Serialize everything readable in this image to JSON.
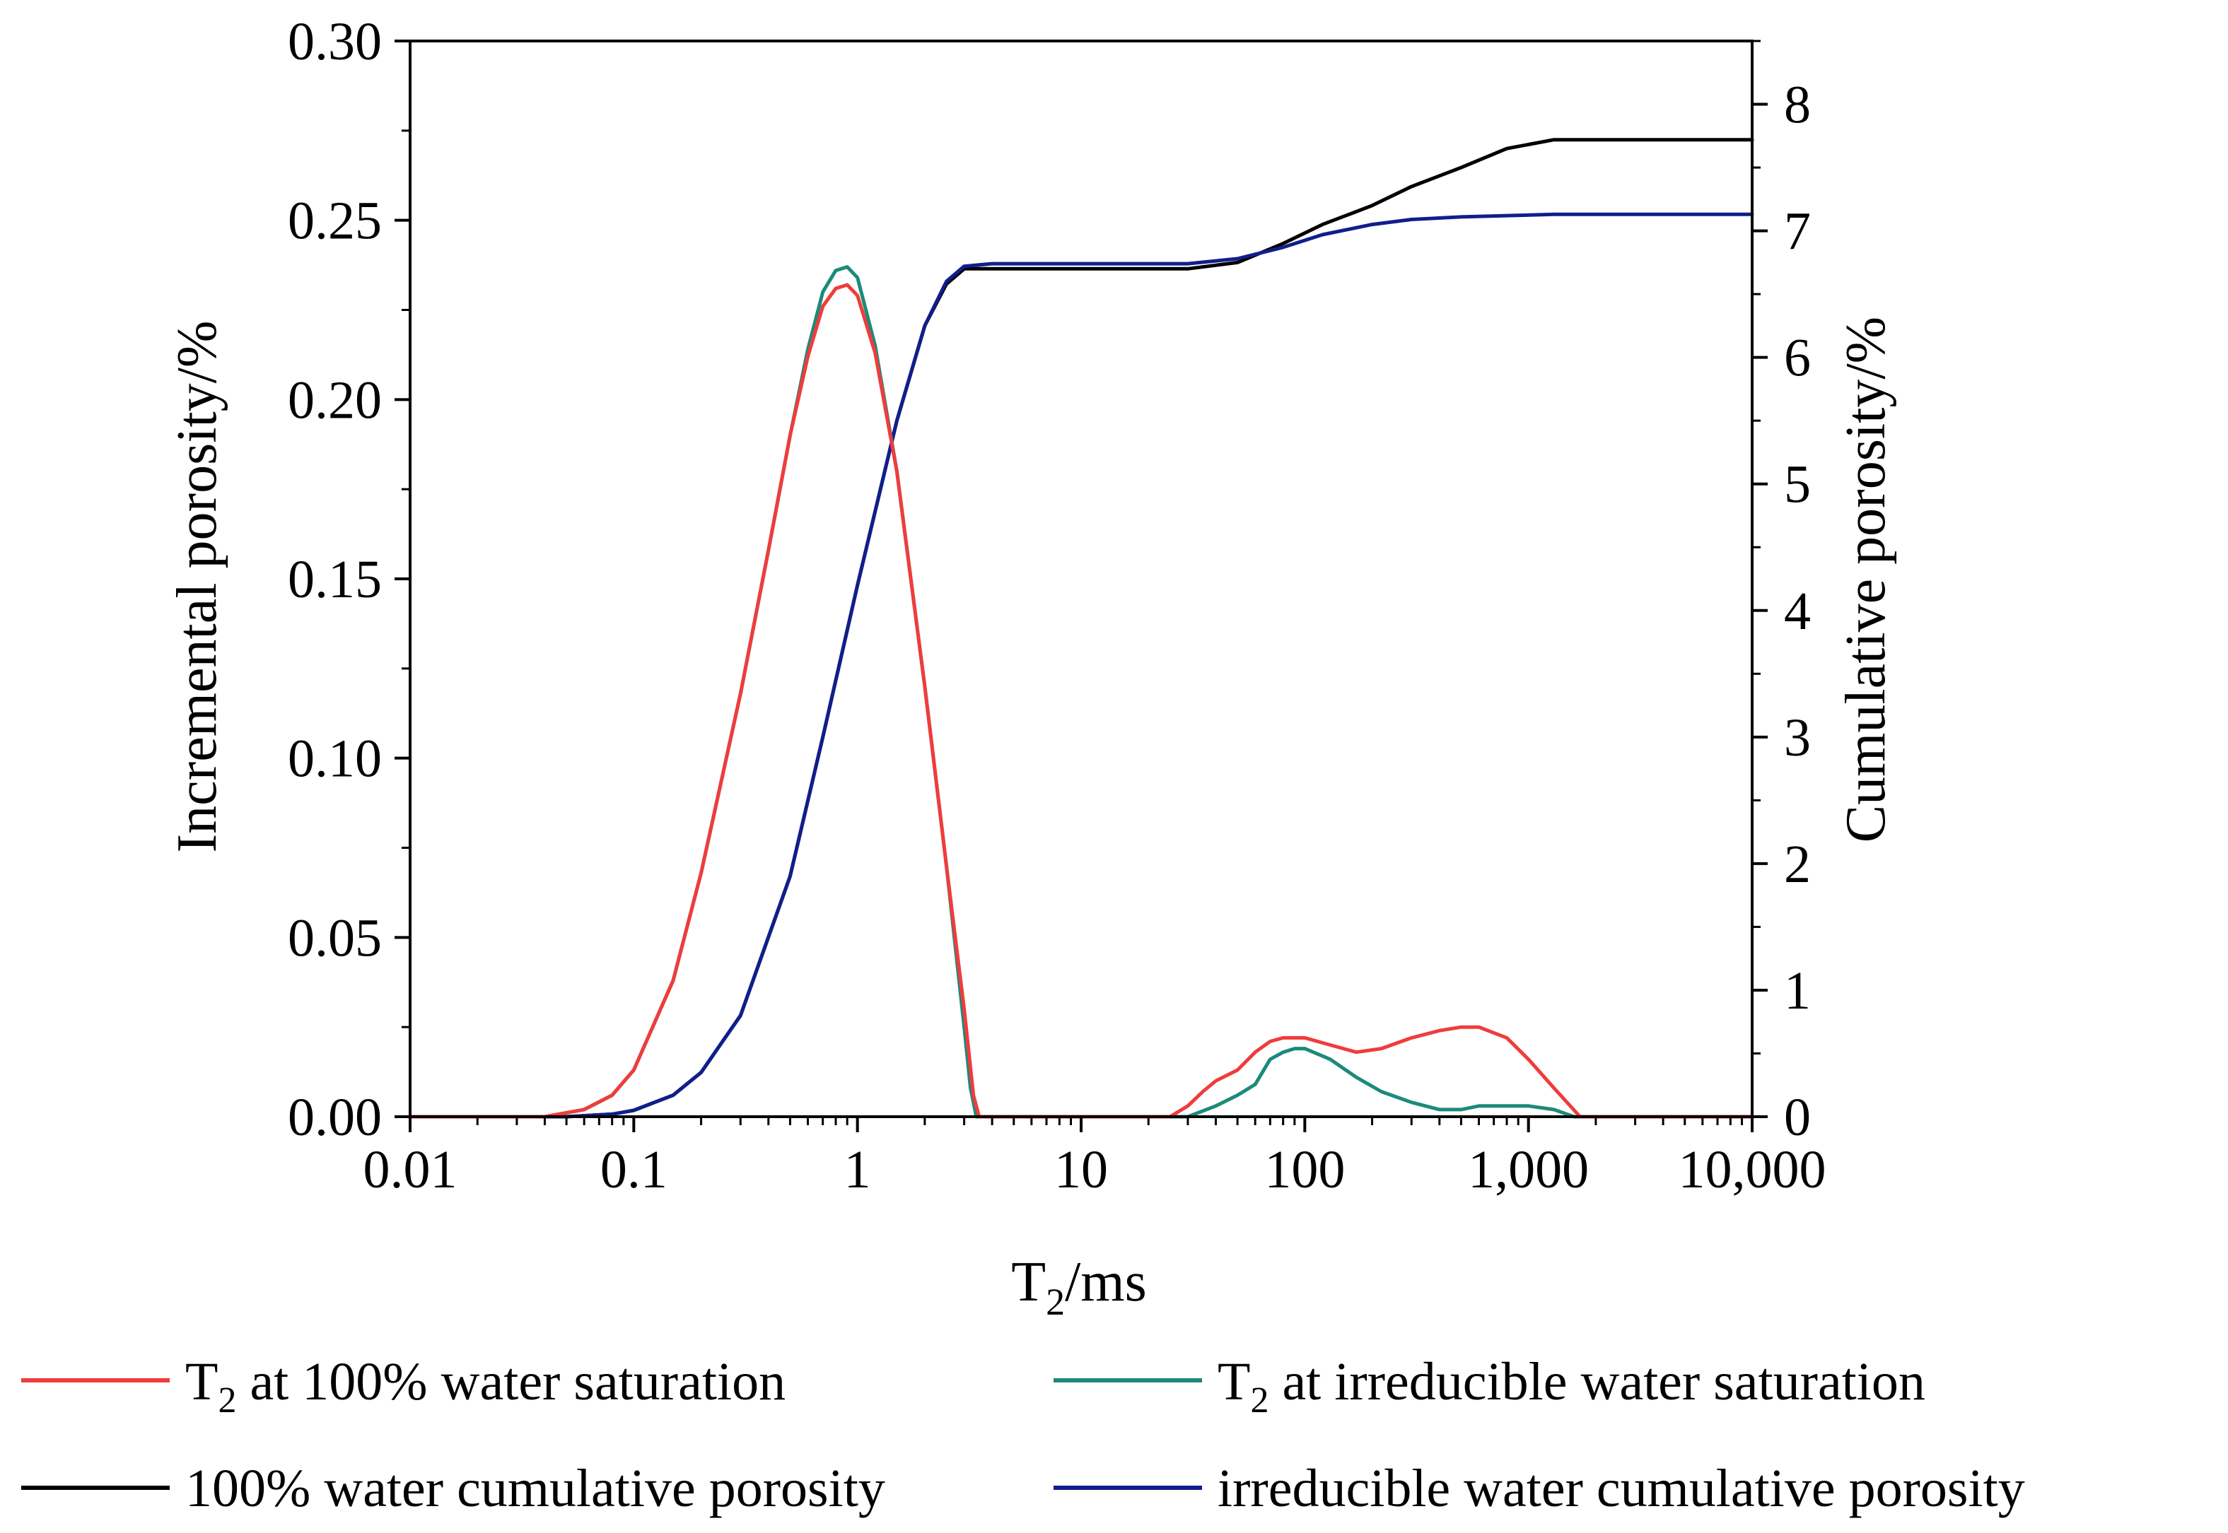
{
  "chart_data": {
    "type": "line",
    "xscale": "log",
    "xlim": [
      0.01,
      10000
    ],
    "x_ticks": [
      0.01,
      0.1,
      1,
      10,
      100,
      1000,
      10000
    ],
    "x_tick_labels": [
      "0.01",
      "0.1",
      "1",
      "10",
      "100",
      "1,000",
      "10,000"
    ],
    "xlabel_main": "T",
    "xlabel_sub": "2",
    "xlabel_rest": "/ms",
    "ylabel_left": "Incremental porosity/%",
    "ylim_left": [
      0,
      0.3
    ],
    "y_left_ticks": [
      0,
      0.05,
      0.1,
      0.15,
      0.2,
      0.25,
      0.3
    ],
    "y_left_tick_labels": [
      "0.00",
      "0.05",
      "0.10",
      "0.15",
      "0.20",
      "0.25",
      "0.30"
    ],
    "ylabel_right": "Cumulative porosity/%",
    "ylim_right": [
      0,
      8.5
    ],
    "y_right_ticks": [
      0,
      1,
      2,
      3,
      4,
      5,
      6,
      7,
      8
    ],
    "y_right_tick_labels": [
      "0",
      "1",
      "2",
      "3",
      "4",
      "5",
      "6",
      "7",
      "8"
    ],
    "series": [
      {
        "name": "T2 at 100% water saturation",
        "legend_main": "T",
        "legend_sub": "2",
        "legend_rest": " at 100% water saturation",
        "axis": "left",
        "color": "#f03c3c",
        "x": [
          0.01,
          0.04,
          0.06,
          0.08,
          0.1,
          0.15,
          0.2,
          0.3,
          0.4,
          0.5,
          0.6,
          0.7,
          0.8,
          0.9,
          1.0,
          1.2,
          1.5,
          2.0,
          2.5,
          3.0,
          3.3,
          3.5,
          5,
          10,
          25,
          30,
          35,
          40,
          50,
          60,
          70,
          80,
          100,
          130,
          170,
          220,
          300,
          400,
          500,
          600,
          800,
          1000,
          1300,
          1700,
          10000
        ],
        "y": [
          0,
          0,
          0.002,
          0.006,
          0.013,
          0.038,
          0.068,
          0.118,
          0.158,
          0.19,
          0.212,
          0.226,
          0.231,
          0.232,
          0.229,
          0.213,
          0.18,
          0.12,
          0.07,
          0.03,
          0.006,
          0,
          0,
          0,
          0,
          0.003,
          0.007,
          0.01,
          0.013,
          0.018,
          0.021,
          0.022,
          0.022,
          0.02,
          0.018,
          0.019,
          0.022,
          0.024,
          0.025,
          0.025,
          0.022,
          0.016,
          0.008,
          0,
          0
        ]
      },
      {
        "name": "T2 at irreducible water saturation",
        "legend_main": "T",
        "legend_sub": "2",
        "legend_rest": " at irreducible water saturation",
        "axis": "left",
        "color": "#1c8a7a",
        "x": [
          0.01,
          0.04,
          0.06,
          0.08,
          0.1,
          0.15,
          0.2,
          0.3,
          0.4,
          0.5,
          0.6,
          0.7,
          0.8,
          0.9,
          1.0,
          1.2,
          1.5,
          2.0,
          2.5,
          3.0,
          3.2,
          3.4,
          5,
          10,
          30,
          40,
          50,
          60,
          70,
          80,
          90,
          100,
          130,
          170,
          220,
          300,
          400,
          500,
          600,
          800,
          1000,
          1300,
          1600,
          10000
        ],
        "y": [
          0,
          0,
          0.002,
          0.006,
          0.013,
          0.038,
          0.068,
          0.118,
          0.158,
          0.19,
          0.214,
          0.23,
          0.236,
          0.237,
          0.234,
          0.215,
          0.18,
          0.12,
          0.07,
          0.025,
          0.008,
          0,
          0,
          0,
          0,
          0.003,
          0.006,
          0.009,
          0.016,
          0.018,
          0.019,
          0.019,
          0.016,
          0.011,
          0.007,
          0.004,
          0.002,
          0.002,
          0.003,
          0.003,
          0.003,
          0.002,
          0,
          0
        ]
      },
      {
        "name": "100% water cumulative porosity",
        "legend_text": "100% water cumulative porosity",
        "axis": "right",
        "color": "#000000",
        "x": [
          0.01,
          0.05,
          0.08,
          0.1,
          0.15,
          0.2,
          0.3,
          0.5,
          0.7,
          1.0,
          1.5,
          2.0,
          2.5,
          3.0,
          4,
          10,
          30,
          50,
          80,
          120,
          200,
          300,
          500,
          800,
          1300,
          1700,
          10000
        ],
        "y": [
          0,
          0,
          0.02,
          0.05,
          0.17,
          0.35,
          0.8,
          1.9,
          3.0,
          4.2,
          5.5,
          6.25,
          6.58,
          6.7,
          6.7,
          6.7,
          6.7,
          6.75,
          6.9,
          7.05,
          7.2,
          7.35,
          7.5,
          7.65,
          7.72,
          7.72,
          7.72
        ]
      },
      {
        "name": "irreducible water cumulative porosity",
        "legend_text": "irreducible water cumulative porosity",
        "axis": "right",
        "color": "#101e8c",
        "x": [
          0.01,
          0.05,
          0.08,
          0.1,
          0.15,
          0.2,
          0.3,
          0.5,
          0.7,
          1.0,
          1.5,
          2.0,
          2.5,
          3.0,
          4,
          10,
          30,
          50,
          80,
          120,
          200,
          300,
          500,
          800,
          1300,
          1700,
          10000
        ],
        "y": [
          0,
          0,
          0.02,
          0.05,
          0.17,
          0.35,
          0.8,
          1.9,
          3.0,
          4.2,
          5.5,
          6.25,
          6.6,
          6.72,
          6.74,
          6.74,
          6.74,
          6.78,
          6.87,
          6.97,
          7.05,
          7.09,
          7.11,
          7.12,
          7.13,
          7.13,
          7.13
        ]
      }
    ]
  }
}
